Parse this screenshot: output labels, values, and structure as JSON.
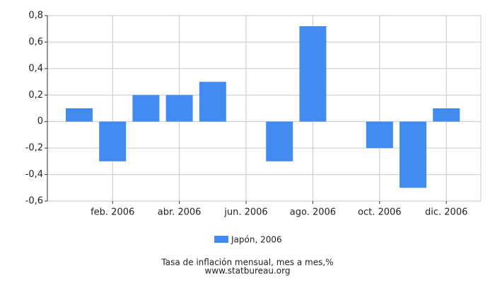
{
  "chart_data": {
    "type": "bar",
    "title": "Tasa de inflación mensual, mes a mes,%",
    "source": "www.statbureau.org",
    "categories": [
      null,
      "feb. 2006",
      null,
      "abr. 2006",
      null,
      "jun. 2006",
      null,
      "ago. 2006",
      null,
      "oct. 2006",
      null,
      "dic. 2006"
    ],
    "series": [
      {
        "name": "Japón, 2006",
        "color": "#428bf0",
        "values": [
          0.1,
          -0.3,
          0.2,
          0.2,
          0.3,
          0,
          -0.3,
          0.72,
          0,
          -0.2,
          -0.5,
          0.1
        ]
      }
    ],
    "ylim": [
      -0.6,
      0.8
    ],
    "yticks": [
      {
        "value": -0.6,
        "label": "-0,6"
      },
      {
        "value": -0.4,
        "label": "-0,4"
      },
      {
        "value": -0.2,
        "label": "-0,2"
      },
      0,
      {
        "value": 0.2,
        "label": "0,2"
      },
      {
        "value": 0.4,
        "label": "0,4"
      },
      {
        "value": 0.6,
        "label": "0,6"
      },
      {
        "value": 0.8,
        "label": "0,8"
      }
    ],
    "grid": true
  }
}
